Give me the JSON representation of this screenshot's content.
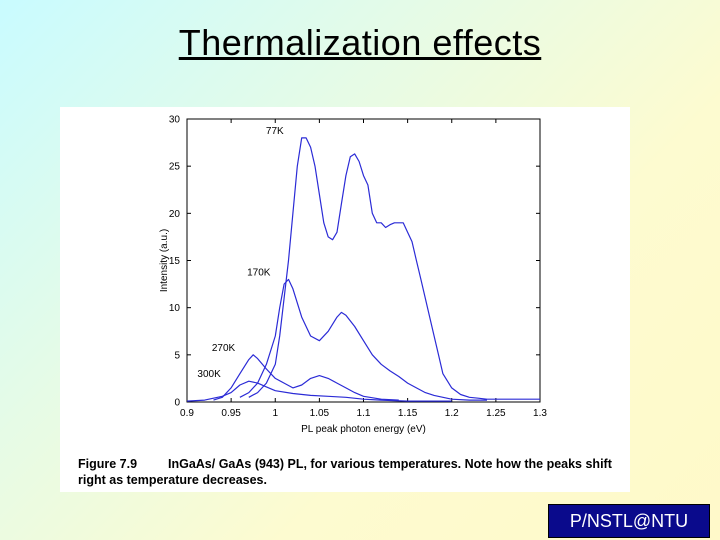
{
  "slide": {
    "title": "Thermalization effects",
    "badge": "P/NSTL@NTU"
  },
  "figure": {
    "caption_label": "Figure 7.9",
    "caption_text": "InGaAs/ GaAs (943) PL, for various temperatures. Note how the peaks shift right as temperature decreases."
  },
  "chart_data": {
    "type": "line",
    "title": "",
    "xlabel": "PL peak photon energy (eV)",
    "ylabel": "Intensity (a.u.)",
    "xlim": [
      0.9,
      1.3
    ],
    "ylim": [
      0,
      30
    ],
    "xticks": [
      0.9,
      0.95,
      1,
      1.05,
      1.1,
      1.15,
      1.2,
      1.25,
      1.3
    ],
    "xtick_labels": [
      "0.9",
      "0.95",
      "1",
      "1.05",
      "1.1",
      "1.15",
      "1.2",
      "1.25",
      "1.3"
    ],
    "yticks": [
      0,
      5,
      10,
      15,
      20,
      25,
      30
    ],
    "ytick_labels": [
      "0",
      "5",
      "10",
      "15",
      "20",
      "25",
      "30"
    ],
    "series": [
      {
        "name": "77K",
        "color": "#2b2bd6",
        "x": [
          0.97,
          0.98,
          0.99,
          1.0,
          1.005,
          1.01,
          1.015,
          1.02,
          1.025,
          1.03,
          1.035,
          1.04,
          1.045,
          1.05,
          1.055,
          1.06,
          1.065,
          1.07,
          1.075,
          1.08,
          1.085,
          1.09,
          1.095,
          1.1,
          1.105,
          1.11,
          1.115,
          1.12,
          1.125,
          1.13,
          1.135,
          1.14,
          1.145,
          1.15,
          1.155,
          1.16,
          1.165,
          1.17,
          1.175,
          1.18,
          1.185,
          1.19,
          1.2,
          1.21,
          1.22,
          1.23,
          1.24,
          1.26,
          1.3
        ],
        "y": [
          0.5,
          1,
          2,
          4,
          7,
          11,
          15,
          20,
          25,
          28,
          28,
          27,
          25,
          22,
          19,
          17.5,
          17.2,
          18,
          21,
          24,
          26,
          26.3,
          25.5,
          24,
          23,
          20,
          19,
          19,
          18.5,
          18.8,
          19,
          19,
          19,
          18,
          17,
          15,
          13,
          11,
          9,
          7,
          5,
          3,
          1.5,
          0.8,
          0.5,
          0.4,
          0.3,
          0.3,
          0.3
        ]
      },
      {
        "name": "170K",
        "color": "#2b2bd6",
        "x": [
          0.96,
          0.97,
          0.98,
          0.99,
          1.0,
          1.005,
          1.01,
          1.015,
          1.02,
          1.03,
          1.04,
          1.05,
          1.06,
          1.07,
          1.075,
          1.08,
          1.09,
          1.1,
          1.11,
          1.12,
          1.13,
          1.14,
          1.15,
          1.16,
          1.17,
          1.18,
          1.19,
          1.2,
          1.22,
          1.24
        ],
        "y": [
          0.5,
          1,
          2,
          4,
          7,
          10,
          12.5,
          13,
          12,
          9,
          7,
          6.5,
          7.5,
          9,
          9.5,
          9.2,
          8,
          6.5,
          5,
          4,
          3.3,
          2.7,
          2,
          1.5,
          1,
          0.7,
          0.5,
          0.3,
          0.2,
          0.2
        ]
      },
      {
        "name": "270K",
        "color": "#2b2bd6",
        "x": [
          0.93,
          0.94,
          0.95,
          0.96,
          0.97,
          0.975,
          0.98,
          0.99,
          1.0,
          1.01,
          1.02,
          1.03,
          1.04,
          1.05,
          1.06,
          1.07,
          1.08,
          1.09,
          1.1,
          1.12,
          1.14
        ],
        "y": [
          0.2,
          0.5,
          1.5,
          3,
          4.5,
          5,
          4.6,
          3.5,
          2.5,
          2,
          1.5,
          1.8,
          2.5,
          2.8,
          2.5,
          2,
          1.5,
          1,
          0.6,
          0.3,
          0.2
        ]
      },
      {
        "name": "300K",
        "color": "#2b2bd6",
        "x": [
          0.9,
          0.92,
          0.94,
          0.95,
          0.96,
          0.97,
          0.98,
          0.99,
          1.0,
          1.02,
          1.04,
          1.06,
          1.08,
          1.1,
          1.12,
          1.15,
          1.2
        ],
        "y": [
          0.1,
          0.2,
          0.6,
          1,
          1.8,
          2.2,
          2,
          1.6,
          1.2,
          0.9,
          0.7,
          0.6,
          0.5,
          0.3,
          0.2,
          0.1,
          0.1
        ]
      }
    ]
  }
}
